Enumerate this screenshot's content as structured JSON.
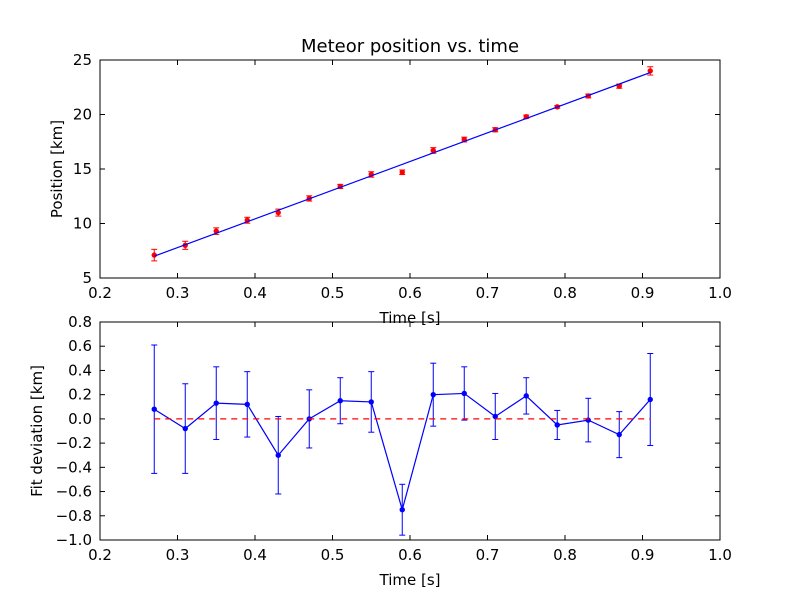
{
  "chart_data": [
    {
      "type": "scatter",
      "title": "Meteor position vs. time",
      "xlabel": "Time [s]",
      "ylabel": "Position [km]",
      "xlim": [
        0.2,
        1.0
      ],
      "ylim": [
        5,
        25
      ],
      "xticks": [
        "0.2",
        "0.3",
        "0.4",
        "0.5",
        "0.6",
        "0.7",
        "0.8",
        "0.9",
        "1.0"
      ],
      "yticks": [
        "5",
        "10",
        "15",
        "20",
        "25"
      ],
      "grid": false,
      "colors": {
        "points": "#ff0000",
        "fit": "#0000ff"
      },
      "series": [
        {
          "kind": "errorbar-points",
          "x": [
            0.27,
            0.31,
            0.35,
            0.39,
            0.43,
            0.47,
            0.51,
            0.55,
            0.59,
            0.63,
            0.67,
            0.71,
            0.75,
            0.79,
            0.83,
            0.87,
            0.91
          ],
          "y": [
            7.1,
            8.0,
            9.3,
            10.3,
            11.0,
            12.3,
            13.4,
            14.5,
            14.7,
            16.7,
            17.7,
            18.6,
            19.8,
            20.7,
            21.7,
            22.6,
            24.0
          ],
          "yerr": [
            0.53,
            0.37,
            0.3,
            0.27,
            0.32,
            0.24,
            0.19,
            0.25,
            0.21,
            0.26,
            0.22,
            0.19,
            0.15,
            0.12,
            0.18,
            0.19,
            0.38
          ]
        },
        {
          "kind": "fit-line",
          "x": [
            0.27,
            0.91
          ],
          "y": [
            7.0,
            23.85
          ]
        }
      ]
    },
    {
      "type": "line",
      "title": "",
      "xlabel": "Time [s]",
      "ylabel": "Fit deviation [km]",
      "xlim": [
        0.2,
        1.0
      ],
      "ylim": [
        -1.0,
        0.8
      ],
      "xticks": [
        "0.2",
        "0.3",
        "0.4",
        "0.5",
        "0.6",
        "0.7",
        "0.8",
        "0.9",
        "1.0"
      ],
      "yticks": [
        "−1.0",
        "−0.8",
        "−0.6",
        "−0.4",
        "−0.2",
        "0.0",
        "0.2",
        "0.4",
        "0.6",
        "0.8"
      ],
      "grid": false,
      "colors": {
        "series": "#0000ff",
        "zero_line": "#ff0000"
      },
      "series": [
        {
          "kind": "errorbar-line",
          "x": [
            0.27,
            0.31,
            0.35,
            0.39,
            0.43,
            0.47,
            0.51,
            0.55,
            0.59,
            0.63,
            0.67,
            0.71,
            0.75,
            0.79,
            0.83,
            0.87,
            0.91
          ],
          "y": [
            0.08,
            -0.08,
            0.13,
            0.12,
            -0.3,
            0.0,
            0.15,
            0.14,
            -0.75,
            0.2,
            0.21,
            0.02,
            0.19,
            -0.05,
            -0.01,
            -0.13,
            0.16
          ],
          "yerr": [
            0.53,
            0.37,
            0.3,
            0.27,
            0.32,
            0.24,
            0.19,
            0.25,
            0.21,
            0.26,
            0.22,
            0.19,
            0.15,
            0.12,
            0.18,
            0.19,
            0.38
          ]
        },
        {
          "kind": "reference-line",
          "x": [
            0.27,
            0.91
          ],
          "y": [
            0,
            0
          ]
        }
      ]
    }
  ]
}
